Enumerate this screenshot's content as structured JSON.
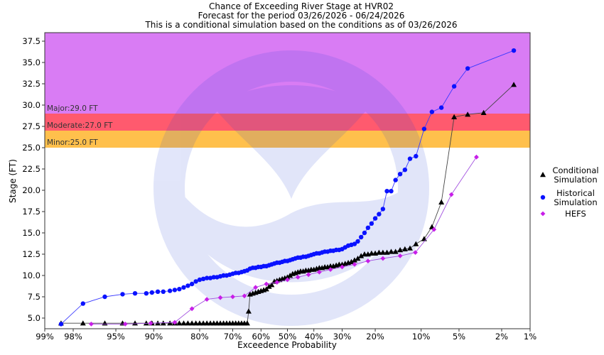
{
  "title_lines": [
    "Chance of Exceeding River Stage at HVR02",
    "Forecast for the period 03/26/2026 - 06/24/2026",
    "This is a conditional simulation based on the conditions as of 03/26/2026"
  ],
  "chart_data": {
    "type": "scatter",
    "title": "Chance of Exceeding River Stage at HVR02",
    "xlabel": "Exceedence Probability",
    "ylabel": "Stage (FT)",
    "x_scale": "normal-probability",
    "x_reversed": true,
    "xlim": [
      99,
      1
    ],
    "ylim": [
      3.75,
      38.5
    ],
    "grid": false,
    "legend_position": "right",
    "x_ticks": [
      {
        "p": 99,
        "label": "99%"
      },
      {
        "p": 98,
        "label": "98%"
      },
      {
        "p": 95,
        "label": "95%"
      },
      {
        "p": 90,
        "label": "90%"
      },
      {
        "p": 80,
        "label": "80%"
      },
      {
        "p": 70,
        "label": "70%"
      },
      {
        "p": 60,
        "label": "60%"
      },
      {
        "p": 50,
        "label": "50%"
      },
      {
        "p": 40,
        "label": "40%"
      },
      {
        "p": 30,
        "label": "30%"
      },
      {
        "p": 20,
        "label": "20%"
      },
      {
        "p": 10,
        "label": "10%"
      },
      {
        "p": 5,
        "label": "5%"
      },
      {
        "p": 2,
        "label": "2%"
      },
      {
        "p": 1,
        "label": "1%"
      }
    ],
    "y_ticks": [
      {
        "v": 5.0,
        "label": "5.0"
      },
      {
        "v": 7.5,
        "label": "7.5"
      },
      {
        "v": 10.0,
        "label": "10.0"
      },
      {
        "v": 12.5,
        "label": "12.5"
      },
      {
        "v": 15.0,
        "label": "15.0"
      },
      {
        "v": 17.5,
        "label": "17.5"
      },
      {
        "v": 20.0,
        "label": "20.0"
      },
      {
        "v": 22.5,
        "label": "22.5"
      },
      {
        "v": 25.0,
        "label": "25.0"
      },
      {
        "v": 27.5,
        "label": "27.5"
      },
      {
        "v": 30.0,
        "label": "30.0"
      },
      {
        "v": 32.5,
        "label": "32.5"
      },
      {
        "v": 35.0,
        "label": "35.0"
      },
      {
        "v": 37.5,
        "label": "37.5"
      }
    ],
    "flood_bands": [
      {
        "name": "Minor",
        "label": "Minor:25.0 FT",
        "from": 25.0,
        "to": 27.0,
        "color": "#ffc04c"
      },
      {
        "name": "Moderate",
        "label": "Moderate:27.0 FT",
        "from": 27.0,
        "to": 29.0,
        "color": "#ff5a6e"
      },
      {
        "name": "Major",
        "label": "Major:29.0 FT",
        "from": 29.0,
        "to": 38.5,
        "color": "#d97cf4"
      }
    ],
    "series": [
      {
        "name": "Conditional Simulation",
        "legend_lines": [
          "Conditional",
          "Simulation"
        ],
        "marker": "triangle",
        "color": "#000000",
        "line_color": "#444444",
        "points": [
          [
            98.5,
            4.4
          ],
          [
            97.5,
            4.4
          ],
          [
            96.0,
            4.4
          ],
          [
            94.3,
            4.4
          ],
          [
            92.8,
            4.4
          ],
          [
            91.2,
            4.4
          ],
          [
            90.3,
            4.4
          ],
          [
            89.3,
            4.4
          ],
          [
            88.3,
            4.4
          ],
          [
            87.0,
            4.4
          ],
          [
            86.0,
            4.4
          ],
          [
            85.0,
            4.4
          ],
          [
            84.0,
            4.4
          ],
          [
            83.0,
            4.4
          ],
          [
            82.0,
            4.4
          ],
          [
            81.0,
            4.4
          ],
          [
            80.0,
            4.4
          ],
          [
            79.0,
            4.4
          ],
          [
            78.0,
            4.4
          ],
          [
            77.0,
            4.4
          ],
          [
            76.0,
            4.4
          ],
          [
            75.0,
            4.4
          ],
          [
            74.0,
            4.4
          ],
          [
            73.0,
            4.4
          ],
          [
            72.0,
            4.4
          ],
          [
            71.0,
            4.4
          ],
          [
            70.0,
            4.4
          ],
          [
            69.0,
            4.4
          ],
          [
            68.0,
            4.4
          ],
          [
            67.0,
            4.4
          ],
          [
            66.0,
            4.4
          ],
          [
            65.0,
            4.4
          ],
          [
            64.5,
            5.8
          ],
          [
            64.0,
            7.8
          ],
          [
            63.0,
            7.9
          ],
          [
            62.0,
            8.0
          ],
          [
            61.0,
            8.1
          ],
          [
            60.0,
            8.2
          ],
          [
            59.0,
            8.3
          ],
          [
            58.0,
            8.4
          ],
          [
            57.0,
            8.7
          ],
          [
            56.0,
            8.9
          ],
          [
            55.0,
            9.3
          ],
          [
            54.0,
            9.4
          ],
          [
            53.0,
            9.5
          ],
          [
            52.0,
            9.6
          ],
          [
            51.0,
            9.7
          ],
          [
            50.0,
            9.8
          ],
          [
            49.0,
            10.0
          ],
          [
            48.0,
            10.2
          ],
          [
            47.0,
            10.3
          ],
          [
            46.0,
            10.4
          ],
          [
            45.0,
            10.5
          ],
          [
            44.0,
            10.5
          ],
          [
            43.0,
            10.6
          ],
          [
            42.0,
            10.6
          ],
          [
            41.0,
            10.7
          ],
          [
            40.0,
            10.7
          ],
          [
            39.0,
            10.8
          ],
          [
            38.0,
            10.9
          ],
          [
            37.0,
            10.9
          ],
          [
            36.0,
            11.0
          ],
          [
            35.0,
            11.0
          ],
          [
            34.0,
            11.1
          ],
          [
            33.0,
            11.1
          ],
          [
            32.0,
            11.2
          ],
          [
            31.0,
            11.3
          ],
          [
            30.0,
            11.3
          ],
          [
            29.0,
            11.4
          ],
          [
            28.0,
            11.5
          ],
          [
            27.0,
            11.6
          ],
          [
            26.0,
            11.8
          ],
          [
            25.0,
            12.0
          ],
          [
            24.0,
            12.3
          ],
          [
            23.0,
            12.5
          ],
          [
            22.0,
            12.5
          ],
          [
            21.0,
            12.6
          ],
          [
            20.0,
            12.6
          ],
          [
            19.0,
            12.7
          ],
          [
            18.0,
            12.7
          ],
          [
            17.0,
            12.7
          ],
          [
            16.0,
            12.8
          ],
          [
            15.0,
            12.8
          ],
          [
            14.0,
            13.0
          ],
          [
            13.0,
            13.1
          ],
          [
            12.0,
            13.2
          ],
          [
            10.9,
            13.7
          ],
          [
            9.5,
            14.3
          ],
          [
            8.3,
            15.7
          ],
          [
            7.0,
            18.6
          ],
          [
            5.5,
            28.6
          ],
          [
            4.2,
            28.9
          ],
          [
            3.0,
            29.1
          ],
          [
            1.5,
            32.4
          ]
        ]
      },
      {
        "name": "Historical Simulation",
        "legend_lines": [
          "Historical",
          "Simulation"
        ],
        "marker": "circle",
        "color": "#0a12ff",
        "line_color": "#3a3aff",
        "points": [
          [
            98.5,
            4.3
          ],
          [
            97.5,
            6.7
          ],
          [
            96.0,
            7.5
          ],
          [
            94.3,
            7.8
          ],
          [
            92.8,
            7.9
          ],
          [
            91.2,
            7.9
          ],
          [
            90.3,
            8.0
          ],
          [
            89.3,
            8.1
          ],
          [
            88.3,
            8.1
          ],
          [
            87.0,
            8.2
          ],
          [
            86.0,
            8.3
          ],
          [
            85.0,
            8.4
          ],
          [
            84.0,
            8.6
          ],
          [
            83.0,
            8.8
          ],
          [
            82.0,
            9.0
          ],
          [
            81.0,
            9.3
          ],
          [
            80.0,
            9.5
          ],
          [
            79.0,
            9.6
          ],
          [
            78.0,
            9.7
          ],
          [
            77.0,
            9.7
          ],
          [
            76.0,
            9.8
          ],
          [
            75.0,
            9.8
          ],
          [
            74.0,
            9.9
          ],
          [
            73.0,
            10.0
          ],
          [
            72.0,
            10.0
          ],
          [
            71.0,
            10.1
          ],
          [
            70.0,
            10.2
          ],
          [
            69.0,
            10.3
          ],
          [
            68.0,
            10.3
          ],
          [
            67.0,
            10.4
          ],
          [
            66.0,
            10.5
          ],
          [
            65.0,
            10.6
          ],
          [
            64.0,
            10.8
          ],
          [
            63.0,
            10.9
          ],
          [
            62.0,
            10.9
          ],
          [
            61.0,
            11.0
          ],
          [
            60.0,
            11.0
          ],
          [
            59.0,
            11.1
          ],
          [
            58.0,
            11.1
          ],
          [
            57.0,
            11.2
          ],
          [
            56.0,
            11.3
          ],
          [
            55.0,
            11.4
          ],
          [
            54.0,
            11.5
          ],
          [
            53.0,
            11.5
          ],
          [
            52.0,
            11.6
          ],
          [
            51.0,
            11.7
          ],
          [
            50.0,
            11.7
          ],
          [
            49.0,
            11.8
          ],
          [
            48.0,
            11.9
          ],
          [
            47.0,
            12.0
          ],
          [
            46.0,
            12.1
          ],
          [
            45.0,
            12.1
          ],
          [
            44.0,
            12.2
          ],
          [
            43.0,
            12.2
          ],
          [
            42.0,
            12.3
          ],
          [
            41.0,
            12.4
          ],
          [
            40.0,
            12.5
          ],
          [
            39.0,
            12.6
          ],
          [
            38.0,
            12.6
          ],
          [
            37.0,
            12.7
          ],
          [
            36.0,
            12.8
          ],
          [
            35.0,
            12.8
          ],
          [
            34.0,
            12.9
          ],
          [
            33.0,
            12.9
          ],
          [
            32.0,
            13.0
          ],
          [
            31.0,
            13.0
          ],
          [
            30.0,
            13.1
          ],
          [
            29.0,
            13.3
          ],
          [
            28.0,
            13.5
          ],
          [
            27.0,
            13.6
          ],
          [
            26.0,
            13.7
          ],
          [
            25.0,
            14.0
          ],
          [
            24.0,
            14.5
          ],
          [
            23.0,
            15.0
          ],
          [
            22.0,
            15.6
          ],
          [
            21.0,
            16.1
          ],
          [
            20.0,
            16.7
          ],
          [
            19.0,
            17.2
          ],
          [
            18.0,
            17.8
          ],
          [
            17.0,
            19.9
          ],
          [
            16.0,
            19.9
          ],
          [
            15.0,
            21.2
          ],
          [
            14.0,
            21.9
          ],
          [
            13.0,
            22.4
          ],
          [
            12.0,
            23.7
          ],
          [
            10.9,
            24.0
          ],
          [
            9.5,
            27.2
          ],
          [
            8.3,
            29.2
          ],
          [
            7.0,
            29.7
          ],
          [
            5.5,
            32.2
          ],
          [
            4.2,
            34.3
          ],
          [
            1.5,
            36.4
          ]
        ]
      },
      {
        "name": "HEFS",
        "legend_lines": [
          "HEFS"
        ],
        "marker": "diamond",
        "color": "#c81ee8",
        "line_color": "#a454e0",
        "points": [
          [
            97.0,
            4.3
          ],
          [
            94.0,
            4.3
          ],
          [
            90.5,
            4.4
          ],
          [
            86.0,
            4.5
          ],
          [
            82.0,
            6.1
          ],
          [
            78.0,
            7.2
          ],
          [
            74.0,
            7.4
          ],
          [
            70.0,
            7.5
          ],
          [
            66.0,
            7.6
          ],
          [
            62.0,
            8.6
          ],
          [
            58.0,
            9.0
          ],
          [
            54.0,
            9.2
          ],
          [
            50.0,
            9.5
          ],
          [
            46.0,
            9.8
          ],
          [
            42.0,
            10.1
          ],
          [
            38.0,
            10.4
          ],
          [
            34.0,
            10.7
          ],
          [
            30.0,
            11.0
          ],
          [
            26.0,
            11.3
          ],
          [
            22.0,
            11.7
          ],
          [
            18.0,
            12.0
          ],
          [
            14.0,
            12.3
          ],
          [
            11.0,
            12.7
          ],
          [
            8.0,
            15.4
          ],
          [
            5.8,
            19.5
          ],
          [
            3.5,
            23.9
          ]
        ]
      }
    ]
  }
}
